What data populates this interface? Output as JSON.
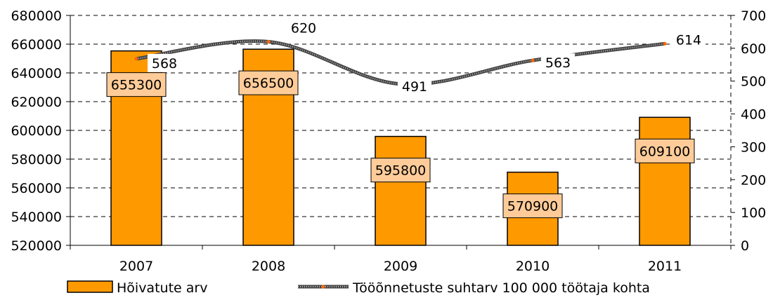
{
  "chart_data": {
    "type": "bar",
    "categories": [
      "2007",
      "2008",
      "2009",
      "2010",
      "2011"
    ],
    "series": [
      {
        "name": "Hõivatute arv",
        "type": "bar",
        "axis": "left",
        "values": [
          655300,
          656500,
          595800,
          570900,
          609100
        ],
        "labels": [
          "655300",
          "656500",
          "595800",
          "570900",
          "609100"
        ]
      },
      {
        "name": "Tööõnnetuste suhtarv 100 000 töötaja kohta",
        "type": "line",
        "axis": "right",
        "values": [
          568,
          620,
          491,
          563,
          614
        ],
        "labels": [
          "568",
          "620",
          "491",
          "563",
          "614"
        ]
      }
    ],
    "y_left": {
      "ylim": [
        520000,
        680000
      ],
      "ticks": [
        "520000",
        "540000",
        "560000",
        "580000",
        "600000",
        "620000",
        "640000",
        "660000",
        "680000"
      ]
    },
    "y_right": {
      "ylim": [
        0,
        700
      ],
      "ticks": [
        "0",
        "100",
        "200",
        "300",
        "400",
        "500",
        "600",
        "700"
      ]
    },
    "grid": true,
    "legend": "bottom",
    "colors": {
      "bar_fill": "#FF9900",
      "label_bg": "#FFCC99",
      "line": "#4D4D4D",
      "marker": "#FF6600"
    }
  }
}
